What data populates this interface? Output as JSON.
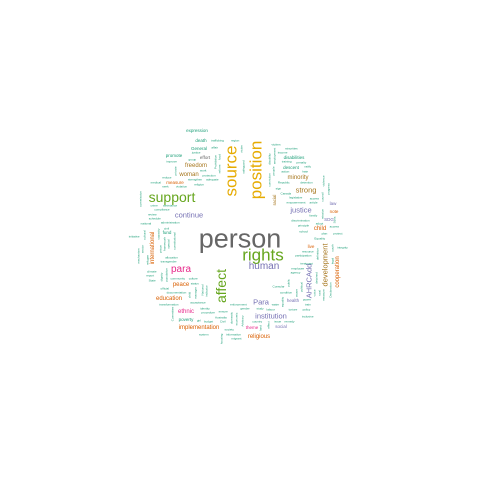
{
  "palette": {
    "grey": "#666666",
    "orange": "#d95f02",
    "purple": "#7570b3",
    "magenta": "#e7298a",
    "green": "#66a61e",
    "gold": "#e6ab02",
    "brown": "#a6761d",
    "teal": "#1b9e77"
  },
  "word_cloud": {
    "words": [
      {
        "text": "person",
        "size": 8,
        "color": "grey"
      },
      {
        "text": "rights",
        "size": 7,
        "color": "green"
      },
      {
        "text": "source",
        "size": 7,
        "color": "gold"
      },
      {
        "text": "position",
        "size": 7,
        "color": "gold"
      },
      {
        "text": "support",
        "size": 6,
        "color": "green"
      },
      {
        "text": "affect",
        "size": 6,
        "color": "green"
      },
      {
        "text": "para",
        "size": 5,
        "color": "magenta"
      },
      {
        "text": "human",
        "size": 5,
        "color": "purple"
      },
      {
        "text": "development",
        "size": 4,
        "color": "brown"
      },
      {
        "text": "AHRCAdd",
        "size": 4,
        "color": "purple"
      },
      {
        "text": "Para",
        "size": 4,
        "color": "purple"
      },
      {
        "text": "institution",
        "size": 4,
        "color": "purple"
      },
      {
        "text": "justice",
        "size": 4,
        "color": "purple"
      },
      {
        "text": "strong",
        "size": 4,
        "color": "brown"
      },
      {
        "text": "continue",
        "size": 4,
        "color": "purple"
      },
      {
        "text": "minority",
        "size": 3,
        "color": "brown"
      },
      {
        "text": "peace",
        "size": 3,
        "color": "orange"
      },
      {
        "text": "freedom",
        "size": 3,
        "color": "brown"
      },
      {
        "text": "woman",
        "size": 3,
        "color": "brown"
      },
      {
        "text": "cooperation",
        "size": 3,
        "color": "orange"
      },
      {
        "text": "education",
        "size": 3,
        "color": "orange"
      },
      {
        "text": "implementation",
        "size": 3,
        "color": "orange"
      },
      {
        "text": "international",
        "size": 3,
        "color": "orange"
      },
      {
        "text": "child",
        "size": 3,
        "color": "orange"
      },
      {
        "text": "ethnic",
        "size": 3,
        "color": "magenta"
      },
      {
        "text": "religious",
        "size": 3,
        "color": "orange"
      },
      {
        "text": "measure",
        "size": 2,
        "color": "orange"
      },
      {
        "text": "theme",
        "size": 2,
        "color": "magenta"
      },
      {
        "text": "effort",
        "size": 2,
        "color": "grey"
      },
      {
        "text": "live",
        "size": 2,
        "color": "orange"
      },
      {
        "text": "SDG",
        "size": 2,
        "color": "purple"
      },
      {
        "text": "social",
        "size": 2,
        "color": "purple"
      },
      {
        "text": "poverty",
        "size": 2,
        "color": "teal"
      },
      {
        "text": "disabilities",
        "size": 2,
        "color": "teal"
      },
      {
        "text": "descent",
        "size": 2,
        "color": "teal"
      },
      {
        "text": "expression",
        "size": 2,
        "color": "teal"
      },
      {
        "text": "promote",
        "size": 2,
        "color": "teal"
      },
      {
        "text": "General",
        "size": 2,
        "color": "teal"
      },
      {
        "text": "death",
        "size": 2,
        "color": "teal"
      },
      {
        "text": "health",
        "size": 2,
        "color": "purple"
      },
      {
        "text": "racial",
        "size": 2,
        "color": "brown"
      },
      {
        "text": "note",
        "size": 2,
        "color": "orange"
      },
      {
        "text": "law",
        "size": 2,
        "color": "purple"
      },
      {
        "text": "fund",
        "size": 2,
        "color": "teal"
      },
      {
        "text": "special",
        "size": 1,
        "color": "teal"
      },
      {
        "text": "public",
        "size": 1,
        "color": "teal"
      },
      {
        "text": "protection",
        "size": 1,
        "color": "teal"
      },
      {
        "text": "economic",
        "size": 1,
        "color": "teal"
      },
      {
        "text": "religion",
        "size": 1,
        "color": "teal"
      },
      {
        "text": "acceptance",
        "size": 1,
        "color": "teal"
      },
      {
        "text": "discrimination",
        "size": 1,
        "color": "teal"
      },
      {
        "text": "constitutional",
        "size": 1,
        "color": "teal"
      },
      {
        "text": "principle",
        "size": 1,
        "color": "teal"
      },
      {
        "text": "Republic",
        "size": 1,
        "color": "teal"
      },
      {
        "text": "National",
        "size": 1,
        "color": "teal"
      },
      {
        "text": "Equality",
        "size": 1,
        "color": "teal"
      },
      {
        "text": "gender",
        "size": 1,
        "color": "teal"
      },
      {
        "text": "employee",
        "size": 1,
        "color": "teal"
      },
      {
        "text": "administration",
        "size": 1,
        "color": "teal"
      },
      {
        "text": "empowerment",
        "size": 1,
        "color": "teal"
      },
      {
        "text": "Australia",
        "size": 1,
        "color": "teal"
      },
      {
        "text": "adequate",
        "size": 1,
        "color": "teal"
      },
      {
        "text": "condition",
        "size": 1,
        "color": "teal"
      },
      {
        "text": "equality",
        "size": 1,
        "color": "teal"
      },
      {
        "text": "strengthen",
        "size": 1,
        "color": "teal"
      },
      {
        "text": "procedure",
        "size": 1,
        "color": "teal"
      },
      {
        "text": "detention",
        "size": 1,
        "color": "teal"
      },
      {
        "text": "conviction",
        "size": 1,
        "color": "teal"
      },
      {
        "text": "legislative",
        "size": 1,
        "color": "teal"
      },
      {
        "text": "safeguard",
        "size": 1,
        "color": "teal"
      },
      {
        "text": "enforcement",
        "size": 1,
        "color": "teal"
      },
      {
        "text": "participation",
        "size": 1,
        "color": "teal"
      },
      {
        "text": "allocation",
        "size": 1,
        "color": "teal"
      },
      {
        "text": "documentation",
        "size": 1,
        "color": "teal"
      },
      {
        "text": "population",
        "size": 1,
        "color": "teal"
      },
      {
        "text": "definition",
        "size": 1,
        "color": "teal"
      },
      {
        "text": "compliance",
        "size": 1,
        "color": "teal"
      },
      {
        "text": "transgender",
        "size": 1,
        "color": "teal"
      },
      {
        "text": "identity",
        "size": 1,
        "color": "teal"
      },
      {
        "text": "disability",
        "size": 1,
        "color": "teal"
      },
      {
        "text": "access",
        "size": 1,
        "color": "teal"
      },
      {
        "text": "cultural",
        "size": 1,
        "color": "teal"
      },
      {
        "text": "political",
        "size": 1,
        "color": "teal"
      },
      {
        "text": "assistance",
        "size": 1,
        "color": "teal"
      },
      {
        "text": "violation",
        "size": 1,
        "color": "teal"
      },
      {
        "text": "domestic",
        "size": 1,
        "color": "teal"
      },
      {
        "text": "capacity",
        "size": 1,
        "color": "teal"
      },
      {
        "text": "country",
        "size": 1,
        "color": "teal"
      },
      {
        "text": "society",
        "size": 1,
        "color": "teal"
      },
      {
        "text": "manager",
        "size": 1,
        "color": "teal"
      },
      {
        "text": "community",
        "size": 1,
        "color": "teal"
      },
      {
        "text": "climate",
        "size": 1,
        "color": "teal"
      },
      {
        "text": "victim",
        "size": 1,
        "color": "teal"
      },
      {
        "text": "people",
        "size": 1,
        "color": "teal"
      },
      {
        "text": "labour",
        "size": 1,
        "color": "teal"
      },
      {
        "text": "dignity",
        "size": 1,
        "color": "teal"
      },
      {
        "text": "torture",
        "size": 1,
        "color": "teal"
      },
      {
        "text": "reform",
        "size": 1,
        "color": "teal"
      },
      {
        "text": "detained",
        "size": 1,
        "color": "teal"
      },
      {
        "text": "official",
        "size": 1,
        "color": "teal"
      },
      {
        "text": "Prohibition",
        "size": 1,
        "color": "teal"
      },
      {
        "text": "Consular",
        "size": 1,
        "color": "teal"
      },
      {
        "text": "Arbitrary",
        "size": 1,
        "color": "teal"
      },
      {
        "text": "information",
        "size": 1,
        "color": "teal"
      },
      {
        "text": "transformation",
        "size": 1,
        "color": "teal"
      },
      {
        "text": "employment",
        "size": 1,
        "color": "teal"
      },
      {
        "text": "schedule",
        "size": 1,
        "color": "teal"
      },
      {
        "text": "treatment",
        "size": 1,
        "color": "teal"
      },
      {
        "text": "agency",
        "size": 1,
        "color": "teal"
      },
      {
        "text": "indicator",
        "size": 1,
        "color": "teal"
      },
      {
        "text": "council",
        "size": 1,
        "color": "teal"
      },
      {
        "text": "Canada",
        "size": 1,
        "color": "teal"
      },
      {
        "text": "family",
        "size": 1,
        "color": "teal"
      },
      {
        "text": "mission",
        "size": 1,
        "color": "teal"
      },
      {
        "text": "private",
        "size": 1,
        "color": "teal"
      },
      {
        "text": "article",
        "size": 1,
        "color": "teal"
      },
      {
        "text": "budget",
        "size": 1,
        "color": "teal"
      },
      {
        "text": "access",
        "size": 1,
        "color": "teal"
      },
      {
        "text": "effect",
        "size": 1,
        "color": "teal"
      },
      {
        "text": "status",
        "size": 1,
        "color": "teal"
      },
      {
        "text": "prison",
        "size": 1,
        "color": "teal"
      },
      {
        "text": "rural",
        "size": 1,
        "color": "teal"
      },
      {
        "text": "study",
        "size": 1,
        "color": "teal"
      },
      {
        "text": "youth",
        "size": 1,
        "color": "teal"
      },
      {
        "text": "aware",
        "size": 1,
        "color": "teal"
      },
      {
        "text": "issue",
        "size": 1,
        "color": "teal"
      },
      {
        "text": "child",
        "size": 1,
        "color": "teal"
      },
      {
        "text": "work",
        "size": 1,
        "color": "teal"
      },
      {
        "text": "Civil",
        "size": 1,
        "color": "teal"
      },
      {
        "text": "food",
        "size": 1,
        "color": "teal"
      },
      {
        "text": "crime",
        "size": 1,
        "color": "teal"
      },
      {
        "text": "Syria",
        "size": 1,
        "color": "teal"
      },
      {
        "text": "State",
        "size": 1,
        "color": "teal"
      },
      {
        "text": "plan",
        "size": 1,
        "color": "teal"
      },
      {
        "text": "sign",
        "size": 1,
        "color": "teal"
      },
      {
        "text": "legal",
        "size": 1,
        "color": "teal"
      },
      {
        "text": "seek",
        "size": 1,
        "color": "teal"
      },
      {
        "text": "hate",
        "size": 1,
        "color": "teal"
      },
      {
        "text": "land",
        "size": 1,
        "color": "teal"
      },
      {
        "text": "train",
        "size": 1,
        "color": "teal"
      },
      {
        "text": "water",
        "size": 1,
        "color": "teal"
      },
      {
        "text": "power",
        "size": 1,
        "color": "teal"
      },
      {
        "text": "group",
        "size": 1,
        "color": "teal"
      },
      {
        "text": "region",
        "size": 1,
        "color": "teal"
      },
      {
        "text": "justice",
        "size": 1,
        "color": "teal"
      },
      {
        "text": "report",
        "size": 1,
        "color": "teal"
      },
      {
        "text": "action",
        "size": 1,
        "color": "teal"
      },
      {
        "text": "voice",
        "size": 1,
        "color": "teal"
      },
      {
        "text": "policy",
        "size": 1,
        "color": "teal"
      },
      {
        "text": "affair",
        "size": 1,
        "color": "teal"
      },
      {
        "text": "sector",
        "size": 1,
        "color": "teal"
      },
      {
        "text": "review",
        "size": 1,
        "color": "teal"
      },
      {
        "text": "system",
        "size": 1,
        "color": "teal"
      },
      {
        "text": "ensure",
        "size": 1,
        "color": "teal"
      },
      {
        "text": "inclusive",
        "size": 1,
        "color": "teal"
      },
      {
        "text": "resource",
        "size": 1,
        "color": "teal"
      },
      {
        "text": "migrant",
        "size": 1,
        "color": "teal"
      },
      {
        "text": "refugee",
        "size": 1,
        "color": "teal"
      },
      {
        "text": "culture",
        "size": 1,
        "color": "teal"
      },
      {
        "text": "medical",
        "size": 1,
        "color": "teal"
      },
      {
        "text": "protect",
        "size": 1,
        "color": "teal"
      },
      {
        "text": "reduce",
        "size": 1,
        "color": "teal"
      },
      {
        "text": "income",
        "size": 1,
        "color": "teal"
      },
      {
        "text": "school",
        "size": 1,
        "color": "teal"
      },
      {
        "text": "training",
        "size": 1,
        "color": "teal"
      },
      {
        "text": "progress",
        "size": 1,
        "color": "teal"
      },
      {
        "text": "Committee",
        "size": 1,
        "color": "teal"
      },
      {
        "text": "national",
        "size": 1,
        "color": "teal"
      },
      {
        "text": "girl",
        "size": 1,
        "color": "teal"
      },
      {
        "text": "civil",
        "size": 1,
        "color": "teal"
      },
      {
        "text": "trafficking",
        "size": 1,
        "color": "teal"
      },
      {
        "text": "measure",
        "size": 1,
        "color": "teal"
      },
      {
        "text": "housing",
        "size": 1,
        "color": "teal"
      },
      {
        "text": "penalty",
        "size": 1,
        "color": "teal"
      },
      {
        "text": "Declaration",
        "size": 1,
        "color": "teal"
      },
      {
        "text": "mechanism",
        "size": 1,
        "color": "teal"
      },
      {
        "text": "remedy",
        "size": 1,
        "color": "teal"
      },
      {
        "text": "initiative",
        "size": 1,
        "color": "teal"
      },
      {
        "text": "victims",
        "size": 1,
        "color": "teal"
      },
      {
        "text": "adopt",
        "size": 1,
        "color": "teal"
      },
      {
        "text": "improve",
        "size": 1,
        "color": "teal"
      },
      {
        "text": "violence",
        "size": 1,
        "color": "teal"
      },
      {
        "text": "framework",
        "size": 1,
        "color": "teal"
      },
      {
        "text": "ratify",
        "size": 1,
        "color": "teal"
      },
      {
        "text": "commission",
        "size": 1,
        "color": "teal"
      },
      {
        "text": "integrity",
        "size": 1,
        "color": "teal"
      },
      {
        "text": "minorities",
        "size": 1,
        "color": "teal"
      }
    ]
  }
}
